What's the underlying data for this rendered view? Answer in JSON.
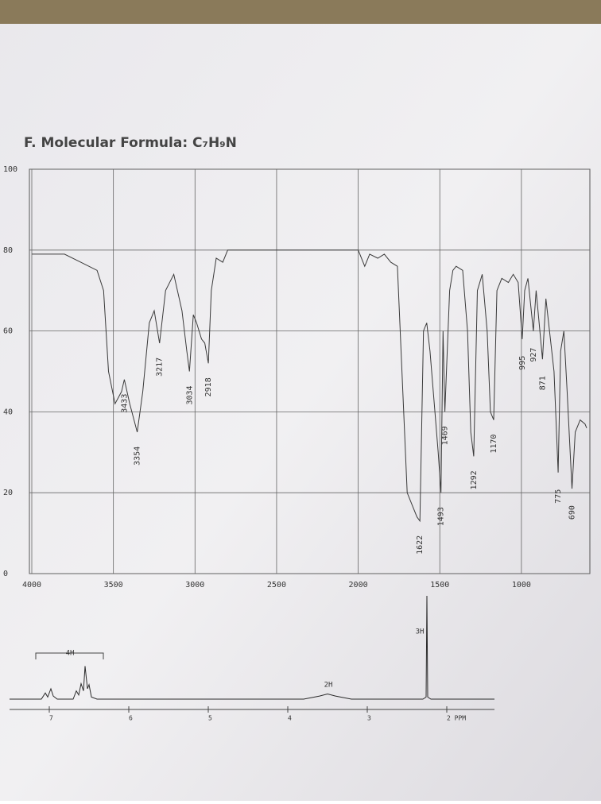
{
  "chart_data": [
    {
      "type": "line",
      "title": "F. Molecular Formula: C₇H₉N",
      "color": "#3a3a3a",
      "grid": true,
      "x": [
        4000,
        3800,
        3700,
        3600,
        3560,
        3530,
        3490,
        3450,
        3433,
        3400,
        3354,
        3320,
        3280,
        3250,
        3217,
        3180,
        3130,
        3080,
        3050,
        3034,
        3010,
        2990,
        2960,
        2940,
        2918,
        2900,
        2870,
        2830,
        2800,
        2700,
        2500,
        2200,
        2000,
        1960,
        1930,
        1880,
        1840,
        1800,
        1760,
        1700,
        1660,
        1640,
        1622,
        1600,
        1580,
        1560,
        1530,
        1510,
        1493,
        1480,
        1469,
        1440,
        1420,
        1400,
        1360,
        1330,
        1310,
        1292,
        1270,
        1240,
        1210,
        1190,
        1170,
        1150,
        1120,
        1080,
        1050,
        1020,
        995,
        980,
        960,
        927,
        910,
        871,
        850,
        800,
        775,
        760,
        740,
        720,
        690,
        670,
        640,
        610,
        600
      ],
      "values": [
        79,
        79,
        77,
        75,
        70,
        50,
        42,
        45,
        48,
        42,
        35,
        45,
        62,
        65,
        57,
        70,
        74,
        65,
        55,
        50,
        64,
        62,
        58,
        57,
        52,
        70,
        78,
        77,
        80,
        80,
        80,
        80,
        80,
        76,
        79,
        78,
        79,
        77,
        76,
        20,
        16,
        14,
        13,
        60,
        62,
        55,
        40,
        30,
        20,
        60,
        40,
        70,
        75,
        76,
        75,
        60,
        35,
        29,
        70,
        74,
        60,
        40,
        38,
        70,
        73,
        72,
        74,
        72,
        58,
        70,
        73,
        60,
        70,
        53,
        68,
        50,
        25,
        55,
        60,
        45,
        21,
        35,
        38,
        37,
        36
      ],
      "peak_labels": [
        3433,
        3354,
        3217,
        3034,
        2918,
        1622,
        1493,
        1469,
        1292,
        1170,
        995,
        927,
        871,
        775,
        690
      ],
      "xlim": [
        4000,
        600
      ],
      "xticks": [
        4000,
        3500,
        3000,
        2500,
        2000,
        1500,
        1000
      ],
      "ylim": [
        0,
        100
      ],
      "yticks": [
        0,
        20,
        40,
        60,
        80,
        100
      ]
    },
    {
      "type": "line",
      "color": "#2a2a2a",
      "x": [
        7.5,
        7.1,
        7.05,
        7.02,
        6.98,
        6.95,
        6.9,
        6.7,
        6.66,
        6.63,
        6.6,
        6.57,
        6.55,
        6.52,
        6.5,
        6.47,
        6.4,
        3.8,
        3.6,
        3.5,
        3.4,
        3.2,
        2.3,
        2.26,
        2.25,
        2.24,
        2.2,
        1.4
      ],
      "values": [
        0,
        0,
        6,
        2,
        10,
        3,
        0,
        0,
        8,
        4,
        15,
        8,
        32,
        10,
        14,
        2,
        0,
        0,
        3,
        5,
        3,
        0,
        0,
        2,
        100,
        2,
        0,
        0
      ],
      "integrals": [
        "4H",
        "2H",
        "3H"
      ],
      "xlim": [
        7.5,
        1.4
      ],
      "xticks": [
        7,
        6,
        5,
        4,
        3,
        {
          "value": 2,
          "label": "2 PPM"
        }
      ],
      "ylim": [
        0,
        100
      ]
    }
  ]
}
